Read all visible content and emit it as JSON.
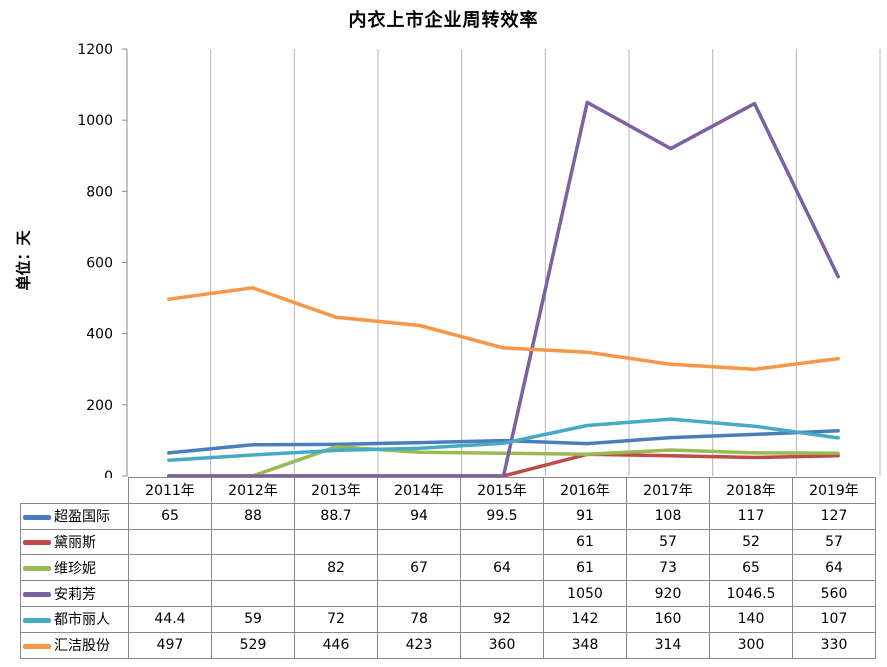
{
  "chart_data": {
    "type": "line",
    "title": "内衣上市企业周转效率",
    "ylabel": "单位：天",
    "xlabel": "",
    "ylim": [
      0,
      1200
    ],
    "yticks": [
      0,
      200,
      400,
      600,
      800,
      1000,
      1200
    ],
    "grid": "vertical-category-lines",
    "legend": "data-table-below",
    "categories": [
      "2011年",
      "2012年",
      "2013年",
      "2014年",
      "2015年",
      "2016年",
      "2017年",
      "2018年",
      "2019年"
    ],
    "series": [
      {
        "name": "超盈国际",
        "color": "#4a7ebb",
        "values": [
          65,
          88,
          88.7,
          94,
          99.5,
          91,
          108,
          117,
          127
        ],
        "labels": [
          "65",
          "88",
          "88.7",
          "94",
          "99.5",
          "91",
          "108",
          "117",
          "127"
        ]
      },
      {
        "name": "黛丽斯",
        "color": "#be4b48",
        "values": [
          0,
          0,
          0,
          0,
          0,
          61,
          57,
          52,
          57
        ],
        "labels": [
          "",
          "",
          "",
          "",
          "",
          "61",
          "57",
          "52",
          "57"
        ]
      },
      {
        "name": "维珍妮",
        "color": "#98b954",
        "values": [
          0,
          0,
          82,
          67,
          64,
          61,
          73,
          65,
          64
        ],
        "labels": [
          "",
          "",
          "82",
          "67",
          "64",
          "61",
          "73",
          "65",
          "64"
        ]
      },
      {
        "name": "安莉芳",
        "color": "#7d60a0",
        "values": [
          0,
          0,
          0,
          0,
          0,
          1050,
          920,
          1046.5,
          560
        ],
        "labels": [
          "",
          "",
          "",
          "",
          "",
          "1050",
          "920",
          "1046.5",
          "560"
        ]
      },
      {
        "name": "都市丽人",
        "color": "#46aac5",
        "values": [
          44.4,
          59,
          72,
          78,
          92,
          142,
          160,
          140,
          107
        ],
        "labels": [
          "44.4",
          "59",
          "72",
          "78",
          "92",
          "142",
          "160",
          "140",
          "107"
        ]
      },
      {
        "name": "汇洁股份",
        "color": "#f79646",
        "values": [
          497,
          529,
          446,
          423,
          360,
          348,
          314,
          300,
          330
        ],
        "labels": [
          "497",
          "529",
          "446",
          "423",
          "360",
          "348",
          "314",
          "300",
          "330"
        ]
      }
    ]
  }
}
